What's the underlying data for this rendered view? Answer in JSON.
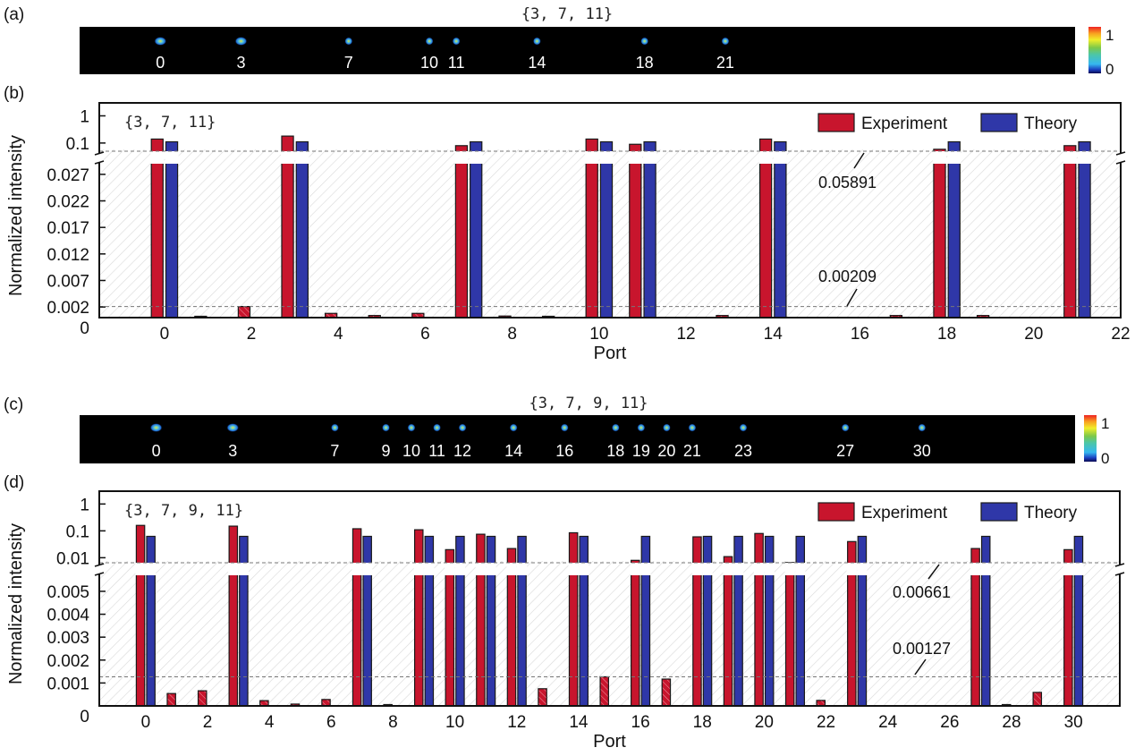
{
  "colors": {
    "experiment": "#c8152d",
    "theory": "#2f37a8",
    "background_pattern": "#d8d8d8",
    "dashed_line": "#777777",
    "camera_bg": "#000000"
  },
  "panels": {
    "a": {
      "label": "(a)",
      "title": "{3,  7,  11}",
      "spots": [
        "0",
        "3",
        "7",
        "10",
        "11",
        "14",
        "18",
        "21"
      ],
      "spot_ports": [
        0,
        3,
        7,
        10,
        11,
        14,
        18,
        21
      ],
      "spot_port_range": [
        -3,
        34
      ],
      "colorbar": {
        "max_label": "1",
        "min_label": "0"
      }
    },
    "c": {
      "label": "(c)",
      "title": "{3,  7,  9,  11}",
      "spots": [
        "0",
        "3",
        "7",
        "9",
        "10",
        "11",
        "12",
        "14",
        "16",
        "18",
        "19",
        "20",
        "21",
        "23",
        "27",
        "30"
      ],
      "spot_ports": [
        0,
        3,
        7,
        9,
        10,
        11,
        12,
        14,
        16,
        18,
        19,
        20,
        21,
        23,
        27,
        30
      ],
      "spot_port_range": [
        -3,
        36
      ],
      "colorbar": {
        "max_label": "1",
        "min_label": "0"
      }
    }
  },
  "chart_data": [
    {
      "panel": "b",
      "panel_label": "(b)",
      "type": "bar",
      "title": "",
      "annotation_set": "{3,  7,  11}",
      "xlabel": "Port",
      "ylabel": "Normalized intensity",
      "xlim": [
        -1.5,
        22
      ],
      "xticks": [
        "0",
        "2",
        "4",
        "6",
        "8",
        "10",
        "12",
        "14",
        "16",
        "18",
        "20",
        "22"
      ],
      "xtick_values": [
        0,
        2,
        4,
        6,
        8,
        10,
        12,
        14,
        16,
        18,
        20,
        22
      ],
      "y_axis": {
        "broken": true,
        "lower_range": [
          0,
          0.029
        ],
        "lower_ticks": [
          "0",
          "0.002",
          "0.007",
          "0.012",
          "0.017",
          "0.022",
          "0.027"
        ],
        "lower_tick_values": [
          0,
          0.002,
          0.007,
          0.012,
          0.017,
          0.022,
          0.027
        ],
        "upper_scale": "log",
        "upper_range": [
          0.05,
          3
        ],
        "upper_ticks": [
          "0.1",
          "1"
        ],
        "upper_tick_values": [
          0.1,
          1
        ]
      },
      "legend": {
        "position": "top-right",
        "entries": [
          "Experiment",
          "Theory"
        ]
      },
      "reference_lines": [
        {
          "value": 0.05891,
          "label": "0.05891"
        },
        {
          "value": 0.00209,
          "label": "0.00209"
        }
      ],
      "ports": [
        0,
        1,
        2,
        3,
        4,
        5,
        6,
        7,
        8,
        9,
        10,
        11,
        12,
        13,
        14,
        15,
        16,
        17,
        18,
        19,
        20,
        21
      ],
      "series": [
        {
          "name": "Experiment",
          "values": [
            0.14,
            0.0001,
            0.00209,
            0.18,
            0.0008,
            0.0004,
            0.0008,
            0.08,
            0.0003,
            0.0002,
            0.14,
            0.09,
            0,
            0.0004,
            0.14,
            0,
            0,
            0.0004,
            0.05891,
            0.0004,
            0,
            0.08
          ]
        },
        {
          "name": "Theory",
          "values": [
            0.111,
            0,
            0,
            0.111,
            0,
            0,
            0,
            0.111,
            0,
            0,
            0.111,
            0.111,
            0,
            0,
            0.111,
            0,
            0,
            0,
            0.111,
            0,
            0,
            0.111
          ]
        }
      ]
    },
    {
      "panel": "d",
      "panel_label": "(d)",
      "type": "bar",
      "title": "",
      "annotation_set": "{3,  7,  9,  11}",
      "xlabel": "Port",
      "ylabel": "Normalized intensity",
      "xlim": [
        -1.5,
        31.5
      ],
      "xticks": [
        "0",
        "2",
        "4",
        "6",
        "8",
        "10",
        "12",
        "14",
        "16",
        "18",
        "20",
        "22",
        "24",
        "26",
        "28",
        "30"
      ],
      "xtick_values": [
        0,
        2,
        4,
        6,
        8,
        10,
        12,
        14,
        16,
        18,
        20,
        22,
        24,
        26,
        28,
        30
      ],
      "y_axis": {
        "broken": true,
        "lower_range": [
          0,
          0.0057
        ],
        "lower_ticks": [
          "0",
          "0.001",
          "0.002",
          "0.003",
          "0.004",
          "0.005"
        ],
        "lower_tick_values": [
          0,
          0.001,
          0.002,
          0.003,
          0.004,
          0.005
        ],
        "upper_scale": "log",
        "upper_range": [
          0.0065,
          3
        ],
        "upper_ticks": [
          "0.01",
          "0.1",
          "1"
        ],
        "upper_tick_values": [
          0.01,
          0.1,
          1
        ]
      },
      "legend": {
        "position": "top-right",
        "entries": [
          "Experiment",
          "Theory"
        ]
      },
      "reference_lines": [
        {
          "value": 0.00661,
          "label": "0.00661"
        },
        {
          "value": 0.00127,
          "label": "0.00127"
        }
      ],
      "ports": [
        0,
        1,
        2,
        3,
        4,
        5,
        6,
        7,
        8,
        9,
        10,
        11,
        12,
        13,
        14,
        15,
        16,
        17,
        18,
        19,
        20,
        21,
        22,
        23,
        24,
        25,
        26,
        27,
        28,
        29,
        30
      ],
      "series": [
        {
          "name": "Experiment",
          "values": [
            0.16,
            0.00054,
            0.00066,
            0.15,
            0.00023,
            8e-05,
            0.00028,
            0.12,
            4e-05,
            0.11,
            0.02,
            0.075,
            0.022,
            0.00075,
            0.085,
            0.00127,
            0.008,
            0.00117,
            0.06,
            0.011,
            0.08,
            0.00661,
            0.00024,
            0.04,
            0,
            0,
            0,
            0.022,
            3e-05,
            0.00059,
            0.02
          ]
        },
        {
          "name": "Theory",
          "values": [
            0.0625,
            0,
            0,
            0.0625,
            0,
            0,
            0,
            0.0625,
            0,
            0.0625,
            0.0625,
            0.0625,
            0.0625,
            0,
            0.0625,
            0,
            0.0625,
            0,
            0.0625,
            0.0625,
            0.0625,
            0.0625,
            0,
            0.0625,
            0,
            0,
            0,
            0.0625,
            0,
            0,
            0.0625
          ]
        }
      ]
    }
  ]
}
